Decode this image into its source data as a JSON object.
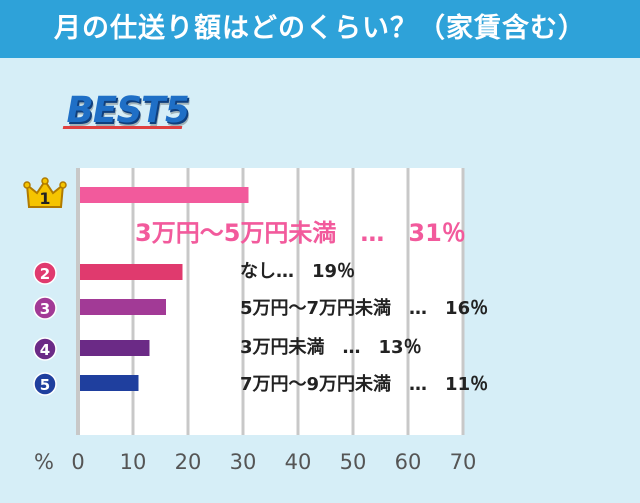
{
  "header": {
    "title": "月の仕送り額はどのくらい？（家賃含む）"
  },
  "badge": {
    "text": "BEST5"
  },
  "colors": {
    "header_bg": "#2ea2d9",
    "plot_bg": "#ffffff",
    "grid": "#c8c8c8",
    "rank1": "#f25a9c",
    "rank2": "#e03a6e",
    "rank3": "#a23a96",
    "rank4": "#6b2a86",
    "rank5": "#1f3f9e"
  },
  "chart_data": {
    "type": "bar",
    "orientation": "horizontal",
    "unit_label": "%",
    "xlim": [
      0,
      70
    ],
    "x_ticks": [
      "0",
      "10",
      "20",
      "30",
      "40",
      "50",
      "60",
      "70"
    ],
    "grid": true,
    "categories": [
      "3万円～5万円未満",
      "なし",
      "5万円～7万円未満",
      "3万円未満",
      "7万円～9万円未満"
    ],
    "values": [
      31,
      19,
      16,
      13,
      11
    ],
    "ranks": [
      "1",
      "2",
      "3",
      "4",
      "5"
    ],
    "labels": [
      "3万円～5万円未満　…　31％",
      "なし…　19％",
      "5万円～7万円未満　…　16％",
      "3万円未満　…　13％",
      "7万円～9万円未満　…　11％"
    ]
  }
}
